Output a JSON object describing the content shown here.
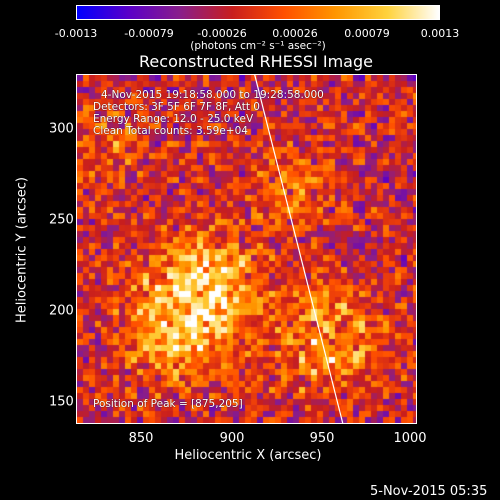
{
  "colorbar": {
    "ticks": [
      "-0.0013",
      "-0.00079",
      "-0.00026",
      "0.00026",
      "0.00079",
      "0.0013"
    ],
    "units_label": "(photons cm⁻² s⁻¹ asec⁻²)",
    "colormap": [
      "#0000ff",
      "#5a00c8",
      "#8a1e8a",
      "#c81e1e",
      "#ff5000",
      "#ff9600",
      "#ffd23c",
      "#ffffff"
    ]
  },
  "title": "Reconstructed RHESSI Image",
  "info": {
    "time_line": "4-Nov-2015 19:18:58.000 to 19:28:58.000",
    "detectors_line": "Detectors: 3F 5F 6F 7F 8F, Att 0",
    "energy_line": "Energy Range: 12.0 - 25.0 keV",
    "clean_line": "Clean    Total counts: 3.59e+04",
    "peak_line": "Position of Peak = [875,205]"
  },
  "axes": {
    "xlabel": "Heliocentric X (arcsec)",
    "ylabel": "Heliocentric Y (arcsec)",
    "xticks": [
      "850",
      "900",
      "950",
      "1000"
    ],
    "yticks": [
      "300",
      "250",
      "200",
      "150"
    ],
    "xlim": [
      815,
      1000
    ],
    "ylim": [
      138,
      330
    ]
  },
  "peak": {
    "x": 875,
    "y": 205
  },
  "limb": {
    "x_at_ymax": 912,
    "x_at_ymin": 960
  },
  "timestamp": "5-Nov-2015 05:35"
}
